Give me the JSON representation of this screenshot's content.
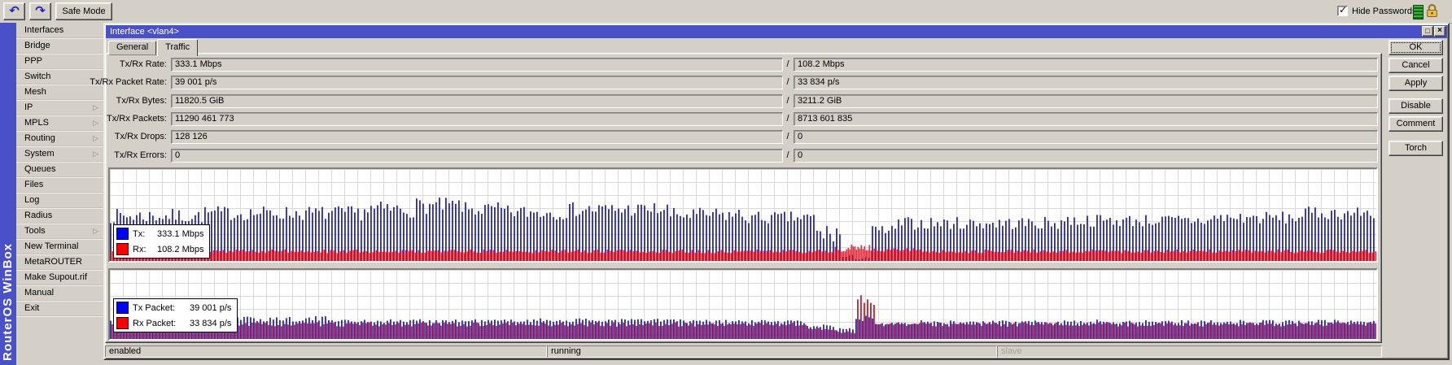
{
  "toolbar": {
    "undo_icon": "↶",
    "redo_icon": "↷",
    "safe_mode": "Safe Mode",
    "hide_passwords": "Hide Passwords",
    "hide_passwords_checked": true
  },
  "brand": "RouterOS WinBox",
  "icons": {
    "submenu_arrow": "▷",
    "check": "✓",
    "maximize": "□",
    "close": "×"
  },
  "sidebar": {
    "items": [
      {
        "label": "Interfaces",
        "submenu": false
      },
      {
        "label": "Bridge",
        "submenu": false
      },
      {
        "label": "PPP",
        "submenu": false
      },
      {
        "label": "Switch",
        "submenu": false
      },
      {
        "label": "Mesh",
        "submenu": false
      },
      {
        "label": "IP",
        "submenu": true
      },
      {
        "label": "MPLS",
        "submenu": true
      },
      {
        "label": "Routing",
        "submenu": true
      },
      {
        "label": "System",
        "submenu": true
      },
      {
        "label": "Queues",
        "submenu": false
      },
      {
        "label": "Files",
        "submenu": false
      },
      {
        "label": "Log",
        "submenu": false
      },
      {
        "label": "Radius",
        "submenu": false
      },
      {
        "label": "Tools",
        "submenu": true
      },
      {
        "label": "New Terminal",
        "submenu": false
      },
      {
        "label": "MetaROUTER",
        "submenu": false
      },
      {
        "label": "Make Supout.rif",
        "submenu": false
      },
      {
        "label": "Manual",
        "submenu": false
      },
      {
        "label": "Exit",
        "submenu": false
      }
    ]
  },
  "window": {
    "title": "Interface <vlan4>",
    "tabs": [
      {
        "label": "General",
        "active": false
      },
      {
        "label": "Traffic",
        "active": true
      }
    ],
    "separator": "/",
    "rows": [
      {
        "label": "Tx/Rx Rate:",
        "tx": "333.1 Mbps",
        "rx": "108.2 Mbps"
      },
      {
        "label": "Tx/Rx Packet Rate:",
        "tx": "39 001 p/s",
        "rx": "33 834 p/s"
      },
      {
        "label": "Tx/Rx Bytes:",
        "tx": "11820.5 GiB",
        "rx": "3211.2 GiB"
      },
      {
        "label": "Tx/Rx Packets:",
        "tx": "11290 461 773",
        "rx": "8713 601 835"
      },
      {
        "label": "Tx/Rx Drops:",
        "tx": "128 126",
        "rx": "0"
      },
      {
        "label": "Tx/Rx Errors:",
        "tx": "0",
        "rx": "0"
      }
    ],
    "side_buttons": [
      {
        "label": "OK",
        "default": true
      },
      {
        "label": "Cancel",
        "default": false
      },
      {
        "label": "Apply",
        "default": false
      },
      {
        "label": "Disable",
        "default": false
      },
      {
        "label": "Comment",
        "default": false
      },
      {
        "label": "Torch",
        "default": false
      }
    ],
    "graphs": [
      {
        "name": "tx-rx-rate-graph",
        "legend": [
          {
            "swatch": "#0000ff",
            "name": "Tx:",
            "value": "333.1 Mbps"
          },
          {
            "swatch": "#ff0000",
            "name": "Rx:",
            "value": "108.2 Mbps"
          }
        ],
        "series": [
          {
            "id": "tx",
            "color": "#2323d8",
            "pitch": 4,
            "offset": 0,
            "bar_width": 1.8,
            "seed": 7,
            "profile": [
              [
                0,
                0.074,
                49,
                8
              ],
              [
                0.074,
                0.2,
                52,
                8
              ],
              [
                0.2,
                0.24,
                56,
                9
              ],
              [
                0.24,
                0.28,
                60,
                9
              ],
              [
                0.28,
                0.31,
                56,
                8
              ],
              [
                0.31,
                0.36,
                53,
                8
              ],
              [
                0.36,
                0.44,
                56,
                8
              ],
              [
                0.44,
                0.5,
                50,
                8
              ],
              [
                0.5,
                0.556,
                47,
                7
              ],
              [
                0.556,
                0.578,
                30,
                12
              ],
              [
                0.578,
                0.6,
                4,
                3
              ],
              [
                0.6,
                0.62,
                33,
                6
              ],
              [
                0.62,
                0.75,
                41,
                7
              ],
              [
                0.75,
                0.87,
                44,
                7
              ],
              [
                0.87,
                0.94,
                47,
                7
              ],
              [
                0.94,
                1.01,
                52,
                7
              ]
            ]
          },
          {
            "id": "rx",
            "color": "#d41a28",
            "pitch": 2,
            "offset": 0.5,
            "bar_width": 1.4,
            "seed": 11,
            "profile": [
              [
                0,
                0.572,
                10.5,
                2
              ],
              [
                0.572,
                0.6,
                14,
                4
              ],
              [
                0.6,
                0.64,
                12,
                2
              ],
              [
                0.64,
                1.01,
                10.5,
                2
              ]
            ]
          }
        ]
      },
      {
        "name": "tx-rx-packet-graph",
        "legend": [
          {
            "swatch": "#0000ff",
            "name": "Tx Packet:",
            "value": "39 001 p/s"
          },
          {
            "swatch": "#ff0000",
            "name": "Rx Packet:",
            "value": "33 834 p/s"
          }
        ],
        "series": [
          {
            "id": "tx",
            "color": "#2323d8",
            "pitch": 4,
            "offset": 0,
            "bar_width": 1.8,
            "seed": 21,
            "profile": [
              [
                0,
                0.1,
                27,
                4
              ],
              [
                0.1,
                0.18,
                29,
                4
              ],
              [
                0.18,
                0.32,
                26,
                3
              ],
              [
                0.32,
                0.45,
                27,
                3
              ],
              [
                0.45,
                0.55,
                25,
                3
              ],
              [
                0.55,
                0.572,
                19,
                3
              ],
              [
                0.572,
                0.588,
                14,
                2
              ],
              [
                0.588,
                0.603,
                30,
                5
              ],
              [
                0.603,
                0.72,
                24,
                3
              ],
              [
                0.72,
                1.01,
                25,
                3
              ]
            ]
          },
          {
            "id": "rx",
            "color": "#d41a28",
            "pitch": 4,
            "offset": 2,
            "bar_width": 1.8,
            "seed": 33,
            "profile": [
              [
                0,
                0.55,
                21,
                3
              ],
              [
                0.55,
                0.572,
                14,
                2
              ],
              [
                0.572,
                0.588,
                10,
                2
              ],
              [
                0.588,
                0.603,
                57,
                9
              ],
              [
                0.603,
                1.01,
                21,
                3
              ]
            ]
          }
        ]
      }
    ],
    "status": [
      {
        "text": "enabled",
        "muted": false
      },
      {
        "text": "running",
        "muted": false
      },
      {
        "text": "slave",
        "muted": true
      }
    ]
  },
  "colors": {
    "titlebar": "#4a50c8",
    "window_bg": "#d4d0c8",
    "bar_blue": "#2323d8",
    "bar_red": "#d41a28",
    "legend_blue": "#0000ff",
    "legend_red": "#ff0000"
  }
}
